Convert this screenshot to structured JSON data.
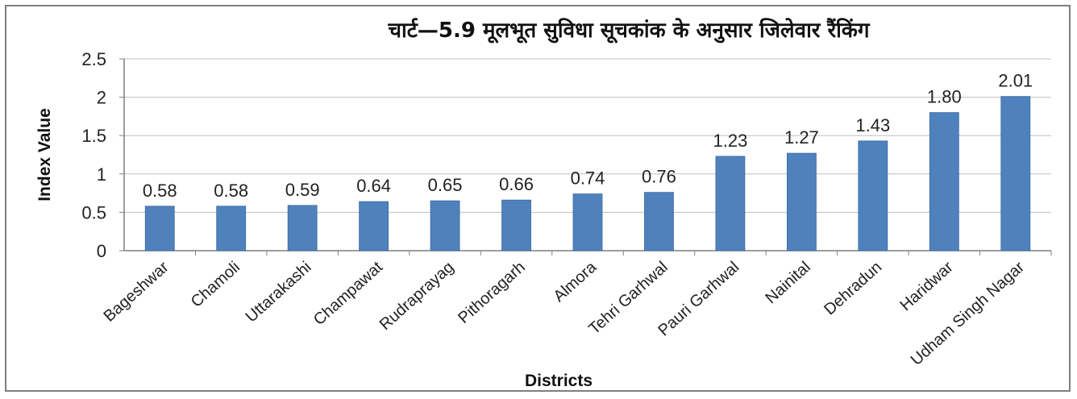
{
  "chart_data": {
    "type": "bar",
    "title": "चार्ट—5.9 मूलभूत सुविधा सूचकांक के अनुसार जिलेवार रैंकिंग",
    "xlabel": "Districts",
    "ylabel": "Index Value",
    "ylim": [
      0,
      2.5
    ],
    "yticks": [
      "0",
      "0.5",
      "1",
      "1.5",
      "2",
      "2.5"
    ],
    "grid": true,
    "legend": "none",
    "bar_color": "#4f81bd",
    "categories": [
      "Bageshwar",
      "Chamoli",
      "Uttarakashi",
      "Champawat",
      "Rudraprayag",
      "Pithoragarh",
      "Almora",
      "Tehri Garhwal",
      "Pauri Garhwal",
      "Nainital",
      "Dehradun",
      "Haridwar",
      "Udham Singh Nagar"
    ],
    "values": [
      0.58,
      0.58,
      0.59,
      0.64,
      0.65,
      0.66,
      0.74,
      0.76,
      1.23,
      1.27,
      1.43,
      1.8,
      2.01
    ],
    "data_labels": [
      "0.58",
      "0.58",
      "0.59",
      "0.64",
      "0.65",
      "0.66",
      "0.74",
      "0.76",
      "1.23",
      "1.27",
      "1.43",
      "1.80",
      "2.01"
    ]
  }
}
